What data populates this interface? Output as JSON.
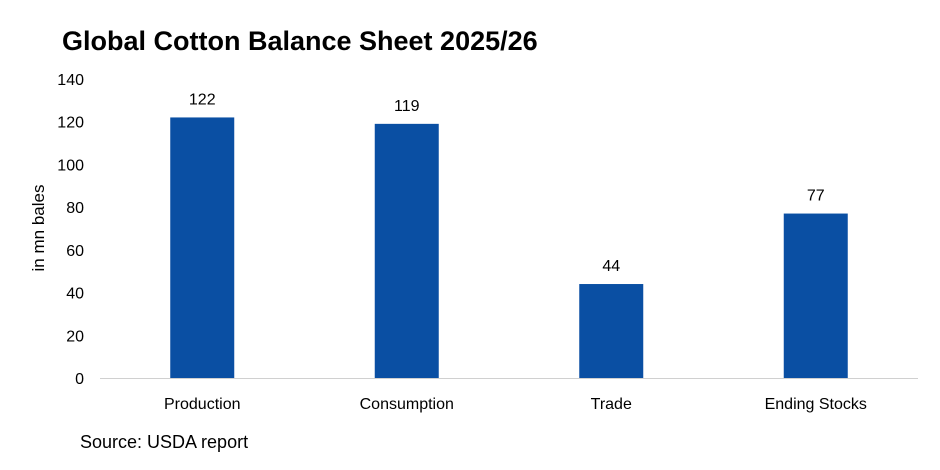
{
  "chart_data": {
    "type": "bar",
    "title": "Global Cotton Balance Sheet 2025/26",
    "xlabel": "",
    "ylabel": "in mn bales",
    "categories": [
      "Production",
      "Consumption",
      "Trade",
      "Ending Stocks"
    ],
    "values": [
      122,
      119,
      44,
      77
    ],
    "data_labels": [
      "122",
      "119",
      "44",
      "77"
    ],
    "yticks": [
      0,
      20,
      40,
      60,
      80,
      100,
      120,
      140
    ],
    "ylim": [
      0,
      140
    ],
    "grid": false,
    "legend": "none",
    "bar_color": "#0A4FA3"
  },
  "source_note": "Source: USDA report"
}
